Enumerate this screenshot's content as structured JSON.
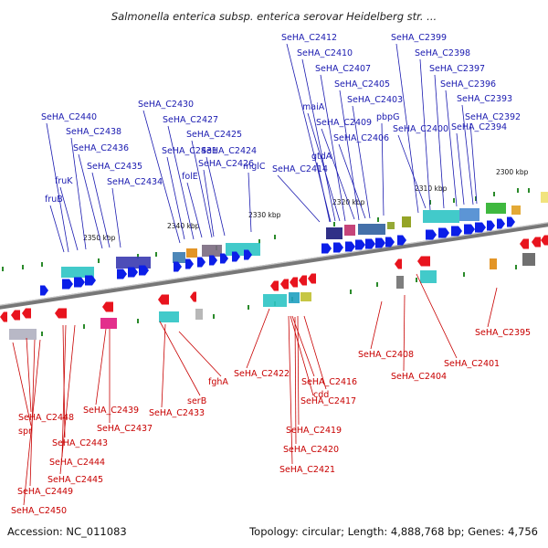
{
  "title": "Salmonella enterica subsp. enterica serovar Heidelberg str. ...",
  "footer": {
    "accession": "Accession: NC_011083",
    "summary": "Topology: circular; Length: 4,888,768 bp; Genes: 4,756"
  },
  "colors": {
    "forward_gene": "#0b1ee8",
    "reverse_gene": "#e8141e",
    "forward_label": "#1a1ab0",
    "reverse_label": "#c80000",
    "backbone": "#888888",
    "cog_tick": "#2a8a2a"
  },
  "scale_labels": [
    "2350 kbp",
    "2340 kbp",
    "2330 kbp",
    "2320 kbp",
    "2310 kbp",
    "2300 kbp"
  ],
  "forward_labels": [
    "SeHA_C2412",
    "SeHA_C2399",
    "SeHA_C2410",
    "SeHA_C2398",
    "SeHA_C2407",
    "SeHA_C2397",
    "SeHA_C2405",
    "SeHA_C2396",
    "SeHA_C2403",
    "SeHA_C2393",
    "SeHA_C2430",
    "maiA",
    "pbpG",
    "SeHA_C2392",
    "SeHA_C2440",
    "SeHA_C2427",
    "SeHA_C2409",
    "SeHA_C2400",
    "SeHA_C2394",
    "SeHA_C2438",
    "SeHA_C2425",
    "SeHA_C2406",
    "SeHA_C2436",
    "SeHA_C2431",
    "SeHA_C2424",
    "SeHA_C2426",
    "gtdA",
    "fruK",
    "SeHA_C2435",
    "folE",
    "mglC",
    "SeHA_C2414",
    "SeHA_C2434",
    "fruB"
  ],
  "reverse_labels": [
    "SeHA_C2395",
    "SeHA_C2408",
    "SeHA_C2401",
    "SeHA_C2404",
    "fghA",
    "SeHA_C2422",
    "SeHA_C2416",
    "serB",
    "cdd",
    "SeHA_C2417",
    "SeHA_C2439",
    "SeHA_C2433",
    "SeHA_C2448",
    "SeHA_C2437",
    "SeHA_C2419",
    "spr",
    "SeHA_C2443",
    "SeHA_C2420",
    "SeHA_C2444",
    "SeHA_C2421",
    "SeHA_C2445",
    "SeHA_C2449",
    "SeHA_C2450"
  ]
}
